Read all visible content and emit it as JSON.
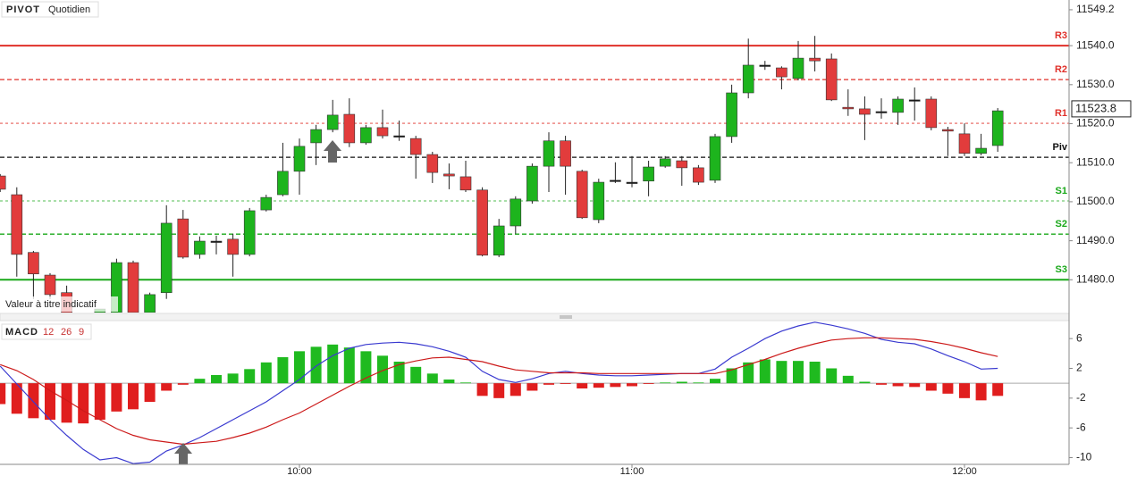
{
  "chart_data": [
    {
      "type": "candlestick",
      "title": "PIVOT",
      "subtitle": "Quotidien",
      "note": "Valeur à titre indicatif",
      "categories": [
        null,
        null,
        null,
        null,
        null,
        null,
        null,
        null,
        null,
        null,
        null,
        null,
        null,
        null,
        null,
        null,
        null,
        null,
        "10:00",
        null,
        null,
        null,
        null,
        null,
        null,
        null,
        null,
        null,
        null,
        null,
        null,
        null,
        null,
        null,
        null,
        null,
        null,
        null,
        "11:00",
        null,
        null,
        null,
        null,
        null,
        null,
        null,
        null,
        null,
        null,
        null,
        null,
        null,
        null,
        null,
        null,
        null,
        null,
        null,
        "12:00",
        null,
        null
      ],
      "open": [
        11506.6,
        11501.8,
        11487.0,
        11481.2,
        11476.7,
        null,
        11471.6,
        11471.6,
        11484.4,
        11471.6,
        11476.7,
        11495.6,
        11486.5,
        11489.9,
        11490.4,
        11486.5,
        11497.9,
        11501.8,
        11507.8,
        11515.1,
        11518.5,
        11522.4,
        11515.1,
        11519.0,
        11516.9,
        11516.2,
        11512.1,
        11507.1,
        11506.4,
        11503.0,
        11486.3,
        11493.8,
        11500.2,
        11509.1,
        11515.6,
        11507.8,
        11495.4,
        11505.5,
        11505.0,
        11505.3,
        11509.1,
        11510.5,
        11508.7,
        11505.5,
        11516.7,
        11527.9,
        11535.0,
        11534.3,
        11531.6,
        11536.8,
        11536.6,
        11524.2,
        11523.8,
        11523.1,
        11522.9,
        11526.1,
        11526.3,
        11518.5,
        11517.4,
        11512.4,
        11514.4
      ],
      "high": [
        11507.1,
        11503.7,
        11487.4,
        11481.7,
        11478.5,
        null,
        11472.5,
        11485.4,
        11484.9,
        11476.7,
        11499.1,
        11497.9,
        11491.1,
        11491.3,
        11491.8,
        11498.4,
        11501.8,
        11515.1,
        11516.2,
        11519.7,
        11526.1,
        11526.5,
        11519.7,
        11523.6,
        11520.8,
        11516.9,
        11512.8,
        11509.8,
        11510.5,
        11503.7,
        11495.6,
        11501.4,
        11509.8,
        11517.8,
        11516.9,
        11508.2,
        11505.9,
        11510.1,
        11511.7,
        11510.5,
        11511.7,
        11511.7,
        11509.4,
        11517.4,
        11530.0,
        11541.8,
        11536.1,
        11534.7,
        11541.2,
        11542.5,
        11538.0,
        11528.8,
        11527.0,
        11526.5,
        11527.0,
        11529.3,
        11527.0,
        11519.2,
        11520.1,
        11517.4,
        11524.0
      ],
      "low": [
        11502.5,
        11480.8,
        11475.1,
        11475.1,
        11471.6,
        null,
        11471.6,
        11471.6,
        11471.6,
        11471.6,
        11475.1,
        11485.4,
        11485.4,
        11486.5,
        11480.8,
        11486.0,
        11497.5,
        11501.4,
        11501.8,
        11509.4,
        11517.8,
        11514.0,
        11514.6,
        11516.2,
        11515.6,
        11505.9,
        11504.8,
        11503.2,
        11502.5,
        11486.0,
        11485.8,
        11491.8,
        11499.5,
        11502.5,
        11501.8,
        11495.6,
        11494.5,
        11504.8,
        11503.7,
        11501.4,
        11508.7,
        11504.1,
        11504.3,
        11504.8,
        11515.1,
        11526.5,
        11533.8,
        11528.8,
        11531.1,
        11533.4,
        11525.8,
        11522.0,
        11515.8,
        11521.3,
        11519.7,
        11520.8,
        11518.3,
        11511.7,
        11511.7,
        11511.9,
        11512.8
      ],
      "close": [
        11503.2,
        11486.5,
        11481.5,
        11476.2,
        11471.6,
        null,
        11472.5,
        11484.4,
        11471.6,
        11476.2,
        11494.5,
        11485.8,
        11489.9,
        11489.9,
        11486.5,
        11497.7,
        11501.1,
        11507.8,
        11514.2,
        11518.5,
        11522.2,
        11515.1,
        11519.0,
        11516.9,
        11516.9,
        11512.1,
        11507.5,
        11506.6,
        11503.0,
        11486.3,
        11493.8,
        11500.7,
        11509.1,
        11515.6,
        11509.1,
        11495.9,
        11505.0,
        11505.5,
        11505.0,
        11508.9,
        11511.0,
        11508.7,
        11505.0,
        11516.7,
        11527.9,
        11535.0,
        11535.0,
        11532.0,
        11536.8,
        11536.1,
        11526.1,
        11523.8,
        11522.4,
        11523.1,
        11526.3,
        11526.1,
        11519.0,
        11518.1,
        11512.4,
        11513.7,
        11523.3
      ],
      "up_color": "#1db41d",
      "down_color": "#e23c3c",
      "doji_color": "#111111",
      "ylim": [
        11471.6,
        11551.7
      ],
      "yticks": [
        11549.2,
        {
          "value": 11540,
          "label": "11540.0"
        },
        {
          "value": 11530,
          "label": "11530.0"
        },
        {
          "value": 11520,
          "label": "11520.0"
        },
        {
          "value": 11510,
          "label": "11510.0"
        },
        {
          "value": 11500,
          "label": "11500.0"
        },
        {
          "value": 11490,
          "label": "11490.0"
        },
        {
          "value": 11480,
          "label": "11480.0"
        }
      ],
      "last_price": 11523.8,
      "pivots": [
        {
          "label": "R3",
          "value": 11540,
          "color": "#e0302a",
          "style": "solid"
        },
        {
          "label": "R2",
          "value": 11531.3,
          "color": "#e0302a",
          "style": "dashed"
        },
        {
          "label": "R1",
          "value": 11520.1,
          "color": "#e0302a",
          "style": "dotted"
        },
        {
          "label": "Piv",
          "value": 11511.4,
          "color": "#111111",
          "style": "dashed"
        },
        {
          "label": "S1",
          "value": 11500.2,
          "color": "#1aa81a",
          "style": "dotted"
        },
        {
          "label": "S2",
          "value": 11491.7,
          "color": "#1aa81a",
          "style": "dashed"
        },
        {
          "label": "S3",
          "value": 11480,
          "color": "#1aa81a",
          "style": "solid"
        }
      ]
    },
    {
      "type": "macd",
      "title": "MACD",
      "params": [
        12,
        26,
        9
      ],
      "param_color": "#c83232",
      "histogram": [
        -2.8,
        -4.1,
        -4.7,
        -4.9,
        -5.3,
        -5.4,
        -4.9,
        -3.8,
        -3.5,
        -2.5,
        -1.0,
        -0.2,
        0.6,
        1.1,
        1.3,
        1.9,
        2.8,
        3.5,
        4.3,
        4.9,
        5.2,
        4.8,
        4.3,
        3.7,
        2.9,
        2.2,
        1.3,
        0.5,
        0.1,
        -1.7,
        -2.0,
        -1.7,
        -1.0,
        -0.2,
        -0.1,
        -0.7,
        -0.6,
        -0.5,
        -0.4,
        -0.1,
        0.1,
        0.2,
        0.1,
        0.6,
        2.0,
        2.8,
        3.2,
        3.0,
        3.0,
        2.9,
        2.0,
        1.0,
        0.2,
        -0.2,
        -0.4,
        -0.5,
        -1.0,
        -1.4,
        -2.0,
        -2.3,
        -1.7
      ],
      "pos_color": "#1fba1f",
      "neg_color": "#e01e1e",
      "series": [
        {
          "color": "#3a3ad0",
          "values": [
            2.3,
            -0.1,
            -2.5,
            -4.9,
            -7.0,
            -8.9,
            -10.3,
            -10.0,
            -10.8,
            -10.6,
            -9.1,
            -8.3,
            -7.3,
            -6.1,
            -4.9,
            -3.7,
            -2.5,
            -1.0,
            0.5,
            2.3,
            3.7,
            4.7,
            5.2,
            5.4,
            5.5,
            5.3,
            4.9,
            4.3,
            3.5,
            1.6,
            0.5,
            0.1,
            0.6,
            1.3,
            1.6,
            1.3,
            1.1,
            1.0,
            1.0,
            1.1,
            1.2,
            1.3,
            1.3,
            1.9,
            3.5,
            4.7,
            6.0,
            7.0,
            7.7,
            8.2,
            7.8,
            7.3,
            6.7,
            5.9,
            5.5,
            5.3,
            4.6,
            3.7,
            2.9,
            1.9,
            2.0
          ]
        },
        {
          "color": "#cc1a1a",
          "values": [
            2.5,
            1.7,
            0.5,
            -1.0,
            -2.3,
            -3.7,
            -4.9,
            -6.1,
            -7.0,
            -7.6,
            -7.9,
            -8.2,
            -8.0,
            -7.8,
            -7.3,
            -6.7,
            -5.9,
            -4.9,
            -4.0,
            -2.8,
            -1.6,
            -0.4,
            0.7,
            1.7,
            2.5,
            3.0,
            3.4,
            3.5,
            3.2,
            2.9,
            2.3,
            1.8,
            1.6,
            1.4,
            1.4,
            1.4,
            1.3,
            1.3,
            1.3,
            1.3,
            1.3,
            1.3,
            1.3,
            1.3,
            1.8,
            2.5,
            3.2,
            4.0,
            4.7,
            5.3,
            5.8,
            6.0,
            6.1,
            6.1,
            6.0,
            5.9,
            5.6,
            5.2,
            4.7,
            4.1,
            3.6
          ]
        }
      ],
      "ylim": [
        -10.9,
        8.3
      ],
      "yticks": [
        6,
        2,
        -2,
        -6,
        -10
      ],
      "zero_line": true
    }
  ]
}
